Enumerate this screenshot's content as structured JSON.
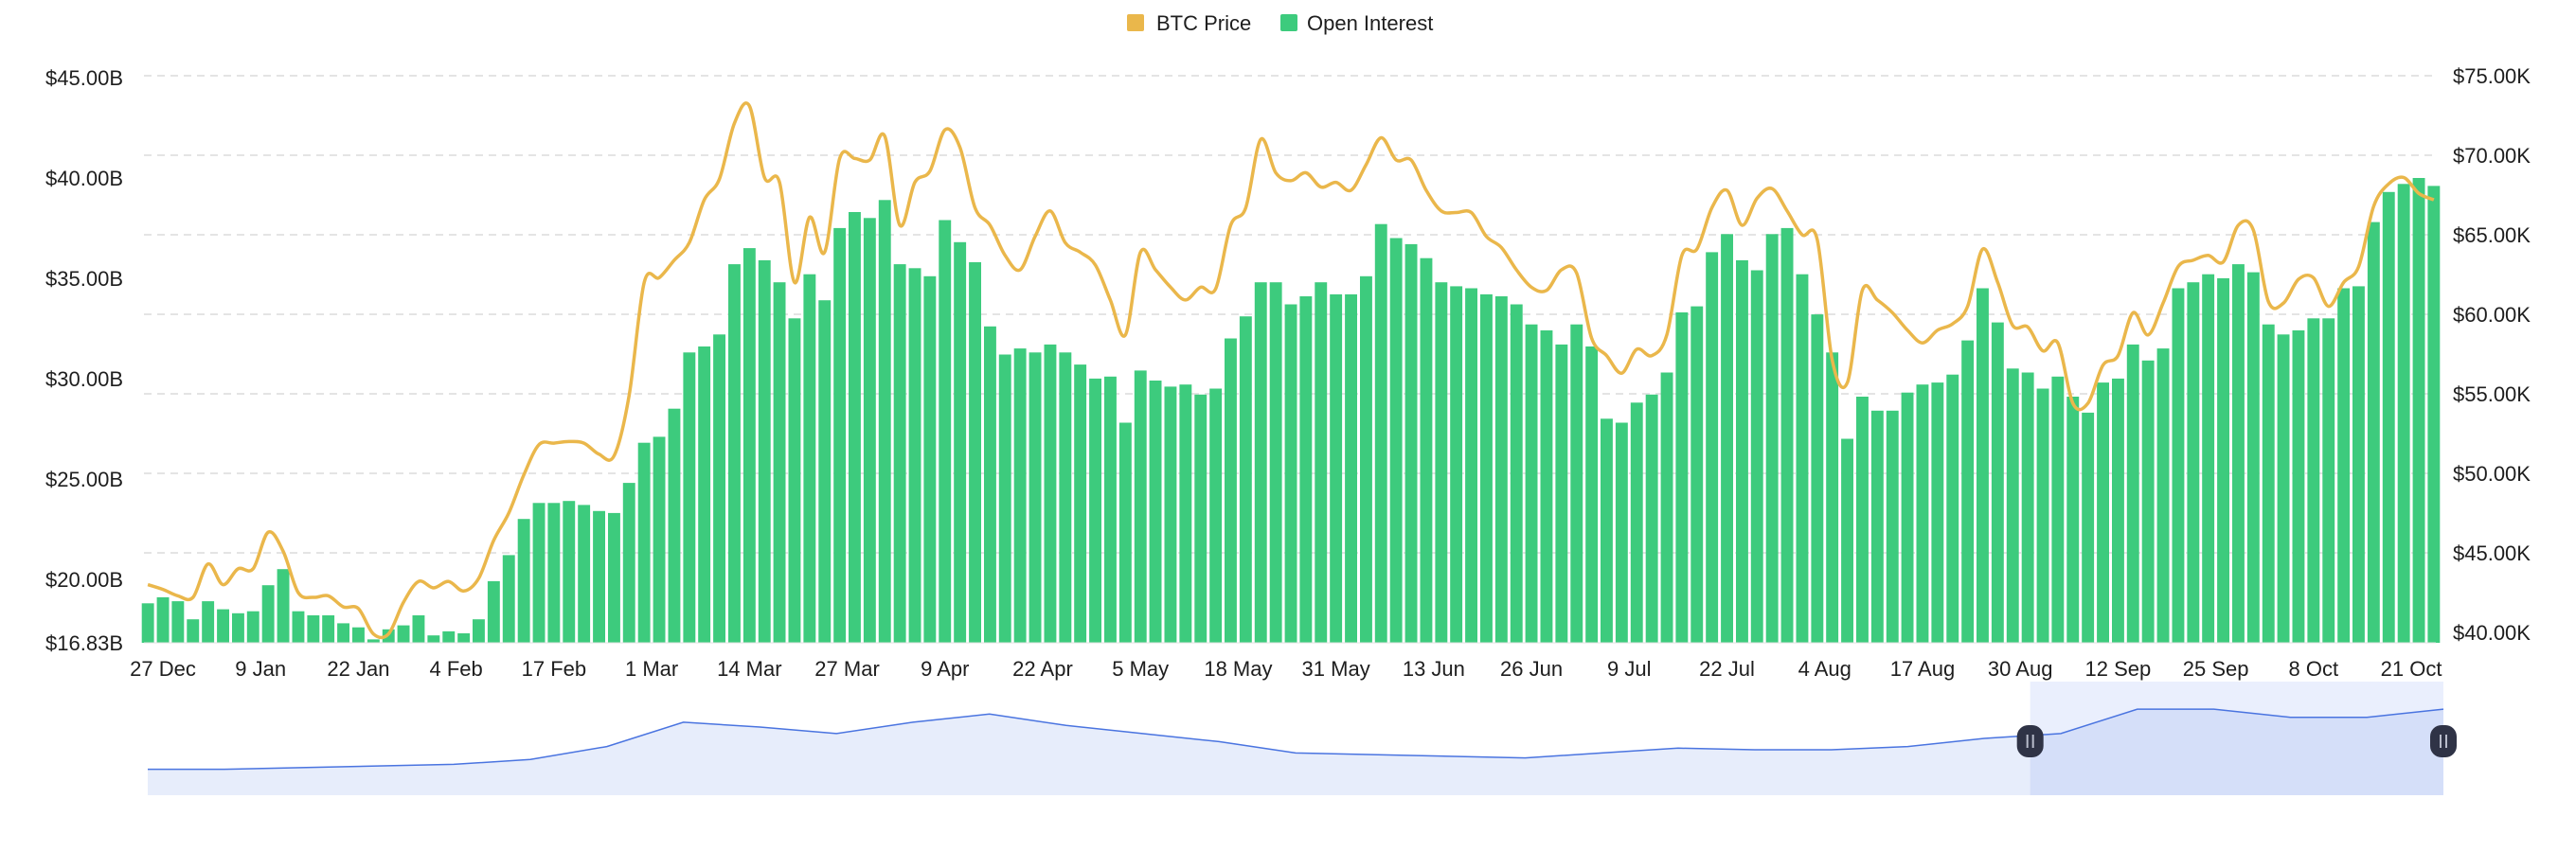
{
  "chart_data": {
    "type": "bar+line",
    "legend": {
      "placement": "top-center",
      "items": [
        {
          "label": "BTC Price",
          "color": "#EAB74B"
        },
        {
          "label": "Open Interest",
          "color": "#3DCB7D"
        }
      ]
    },
    "start_date": "25 Dec",
    "interval_days": 2,
    "x_ticks": [
      "27 Dec",
      "9 Jan",
      "22 Jan",
      "4 Feb",
      "17 Feb",
      "1 Mar",
      "14 Mar",
      "27 Mar",
      "9 Apr",
      "22 Apr",
      "5 May",
      "18 May",
      "31 May",
      "13 Jun",
      "26 Jun",
      "9 Jul",
      "22 Jul",
      "4 Aug",
      "17 Aug",
      "30 Aug",
      "12 Sep",
      "25 Sep",
      "8 Oct",
      "21 Oct"
    ],
    "x_tick_interval_days": 13,
    "y_left": {
      "label": "Open Interest",
      "ticks": [
        "$45.00B",
        "$40.00B",
        "$35.00B",
        "$30.00B",
        "$25.00B",
        "$20.00B"
      ],
      "tick_values": [
        45,
        40,
        35,
        30,
        25,
        20
      ],
      "min_label": "$16.83B",
      "range": [
        16.83,
        45
      ]
    },
    "y_right": {
      "label": "BTC Price",
      "ticks": [
        "$75.00K",
        "$70.00K",
        "$65.00K",
        "$60.00K",
        "$55.00K",
        "$50.00K",
        "$45.00K",
        "$40.00K"
      ],
      "tick_values": [
        75,
        70,
        65,
        60,
        55,
        50,
        45,
        40
      ],
      "range": [
        39.35,
        75
      ]
    },
    "grid": true,
    "series": [
      {
        "name": "Open Interest",
        "axis": "left",
        "unit": "B USD",
        "type": "bar",
        "color": "#3DCB7D",
        "values": [
          18.8,
          19.1,
          18.9,
          18.0,
          18.9,
          18.5,
          18.3,
          18.4,
          19.7,
          20.5,
          18.4,
          18.2,
          18.2,
          17.8,
          17.6,
          17.0,
          17.5,
          17.7,
          18.2,
          17.2,
          17.4,
          17.3,
          18.0,
          19.9,
          21.2,
          23.0,
          23.8,
          23.8,
          23.9,
          23.7,
          23.4,
          23.3,
          24.8,
          26.8,
          27.1,
          28.5,
          31.3,
          31.6,
          32.2,
          35.7,
          36.5,
          35.9,
          34.8,
          33.0,
          35.2,
          33.9,
          37.5,
          38.3,
          38.0,
          38.9,
          35.7,
          35.5,
          35.1,
          37.9,
          36.8,
          35.8,
          32.6,
          31.2,
          31.5,
          31.3,
          31.7,
          31.3,
          30.7,
          30.0,
          30.1,
          27.8,
          30.4,
          29.9,
          29.6,
          29.7,
          29.2,
          29.5,
          32.0,
          33.1,
          34.8,
          34.8,
          33.7,
          34.1,
          34.8,
          34.2,
          34.2,
          35.1,
          37.7,
          37.0,
          36.7,
          36.0,
          34.8,
          34.6,
          34.5,
          34.2,
          34.1,
          33.7,
          32.7,
          32.4,
          31.7,
          32.7,
          31.6,
          28.0,
          27.8,
          28.8,
          29.2,
          30.3,
          33.3,
          33.6,
          36.3,
          37.2,
          35.9,
          35.4,
          37.2,
          37.5,
          35.2,
          33.2,
          31.3,
          27.0,
          29.1,
          28.4,
          28.4,
          29.3,
          29.7,
          29.8,
          30.2,
          31.9,
          34.5,
          32.8,
          30.5,
          30.3,
          29.5,
          30.1,
          29.1,
          28.3,
          29.8,
          30.0,
          31.7,
          30.9,
          31.5,
          34.5,
          34.8,
          35.2,
          35.0,
          35.7,
          35.3,
          32.7,
          32.2,
          32.4,
          33.0,
          33.0,
          34.5,
          34.6,
          37.8,
          39.3,
          39.7,
          40.0,
          39.6
        ]
      },
      {
        "name": "BTC Price",
        "axis": "right",
        "unit": "K USD",
        "type": "line",
        "color": "#EAB74B",
        "values": [
          43.0,
          42.7,
          42.3,
          42.2,
          44.3,
          43.0,
          44.0,
          44.0,
          46.3,
          45.1,
          42.5,
          42.2,
          42.3,
          41.6,
          41.5,
          39.9,
          39.9,
          41.9,
          43.2,
          42.8,
          43.2,
          42.6,
          43.4,
          45.8,
          47.5,
          49.9,
          51.8,
          51.9,
          52.0,
          51.9,
          51.2,
          51.1,
          54.9,
          62.0,
          62.3,
          63.4,
          64.5,
          67.2,
          68.5,
          72.0,
          73.1,
          68.6,
          68.3,
          62.0,
          66.1,
          63.9,
          69.8,
          69.8,
          69.7,
          71.2,
          65.6,
          68.3,
          69.0,
          71.6,
          70.5,
          66.7,
          65.6,
          63.7,
          62.8,
          64.9,
          66.5,
          64.5,
          63.9,
          63.1,
          60.9,
          58.7,
          63.9,
          62.8,
          61.7,
          60.9,
          61.7,
          61.6,
          65.6,
          66.7,
          71.0,
          68.9,
          68.4,
          68.9,
          68.0,
          68.3,
          67.8,
          69.4,
          71.1,
          69.7,
          69.7,
          67.8,
          66.5,
          66.4,
          66.4,
          64.9,
          64.2,
          62.8,
          61.7,
          61.5,
          62.8,
          62.6,
          58.5,
          57.4,
          56.3,
          57.8,
          57.4,
          58.7,
          63.7,
          64.1,
          66.7,
          67.8,
          65.6,
          67.3,
          67.9,
          66.5,
          65.0,
          64.7,
          57.1,
          55.7,
          61.5,
          60.9,
          60.1,
          59.0,
          58.2,
          59.0,
          59.4,
          60.5,
          64.1,
          62.0,
          59.3,
          59.2,
          57.7,
          58.2,
          54.4,
          54.4,
          56.8,
          57.4,
          60.1,
          58.7,
          60.7,
          63.0,
          63.4,
          63.7,
          63.3,
          65.6,
          65.3,
          60.8,
          60.7,
          62.2,
          62.3,
          60.5,
          62.0,
          63.0,
          66.8,
          68.2,
          68.6,
          67.6,
          67.2
        ]
      }
    ],
    "navigator": {
      "line_color": "#4A74E0",
      "relative_values": [
        16,
        16,
        17,
        18,
        19,
        22,
        30,
        45,
        42,
        38,
        45,
        50,
        43,
        38,
        33,
        26,
        25,
        24,
        23,
        26,
        29,
        28,
        28,
        30,
        35,
        38,
        53,
        53,
        48,
        48,
        53
      ],
      "value_range": [
        0,
        70
      ],
      "selection": [
        0.82,
        1.0
      ]
    }
  }
}
